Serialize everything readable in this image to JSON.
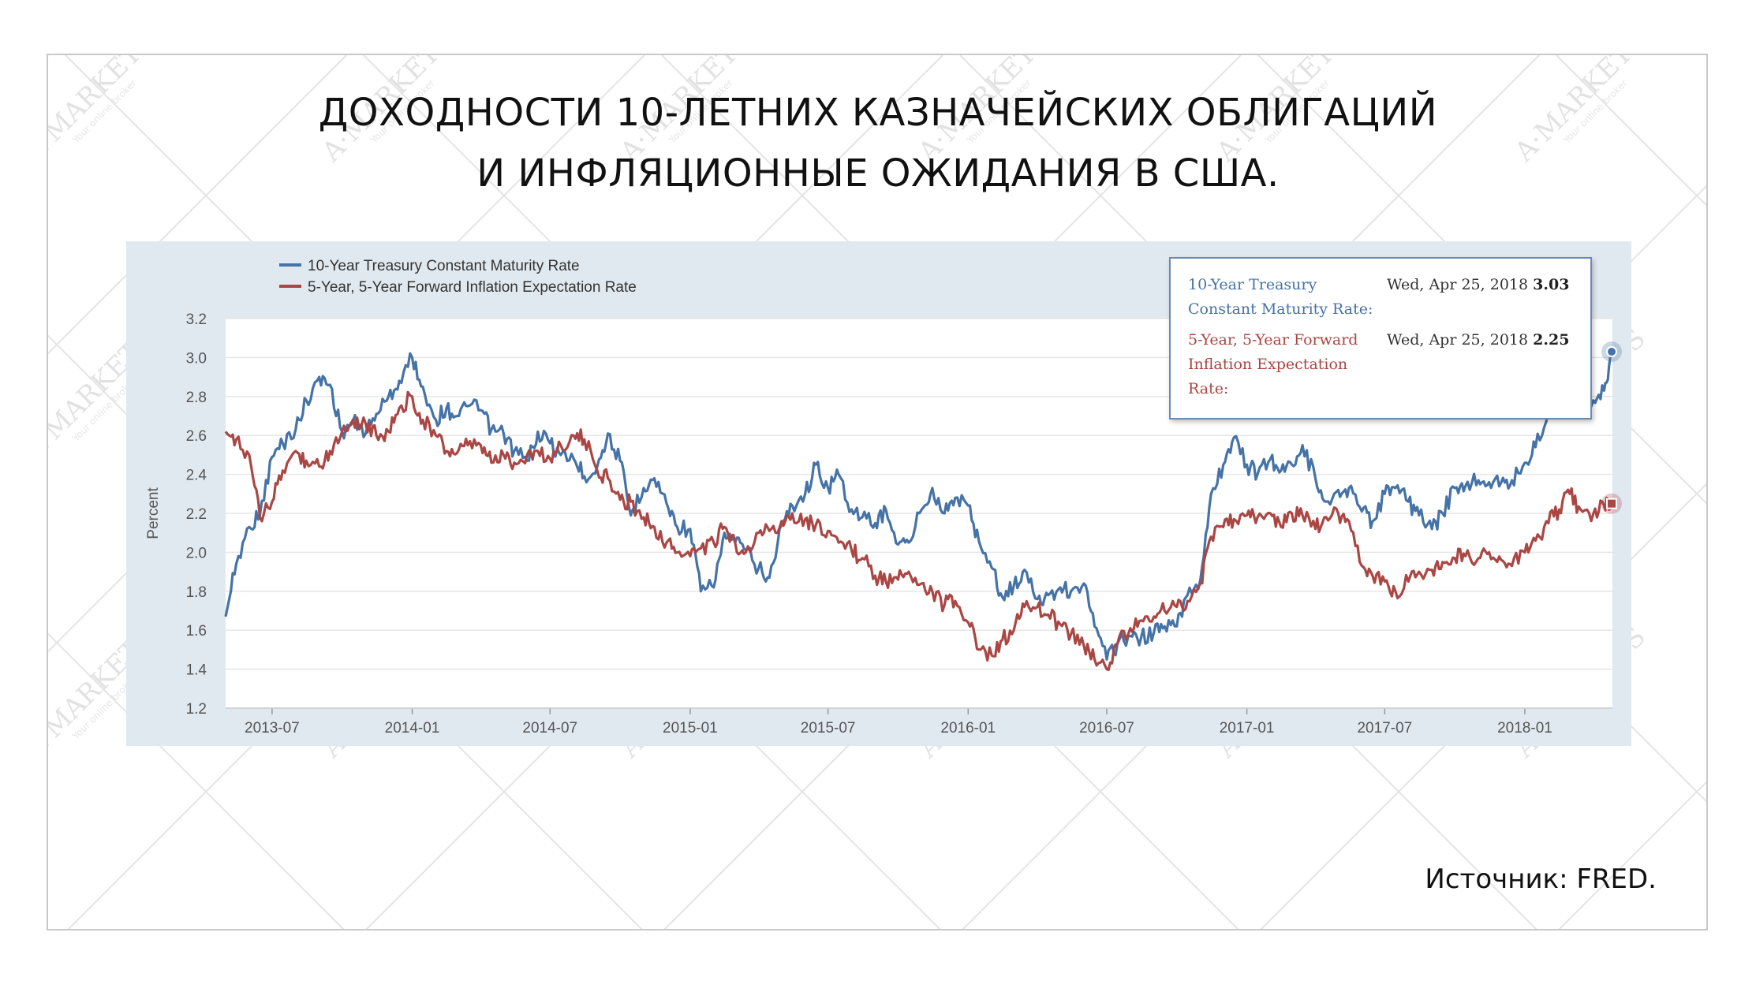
{
  "title_line1": "ДОХОДНОСТИ 10-ЛЕТНИХ КАЗНАЧЕЙСКИХ ОБЛИГАЦИЙ",
  "title_line2": "И ИНФЛЯЦИОННЫЕ ОЖИДАНИЯ В США.",
  "source": "Источник: FRED.",
  "watermark": {
    "brand": "A·MARKETS",
    "tagline": "Your online broker"
  },
  "colors": {
    "series1": "#4572a7",
    "series2": "#aa4643",
    "panel": "#e1e9f0",
    "tooltip_border": "#6a8bb5"
  },
  "tooltip": {
    "rows": [
      {
        "name": "10-Year Treasury Constant Maturity Rate:",
        "date": "Wed, Apr 25, 2018",
        "value": "3.03"
      },
      {
        "name": "5-Year, 5-Year Forward Inflation Expectation Rate:",
        "date": "Wed, Apr 25, 2018",
        "value": "2.25"
      }
    ]
  },
  "chart_data": {
    "type": "line",
    "title": "",
    "xlabel": "",
    "ylabel": "Percent",
    "ylim": [
      1.2,
      3.2
    ],
    "yticks": [
      "1.2",
      "1.4",
      "1.6",
      "1.8",
      "2.0",
      "2.2",
      "2.4",
      "2.6",
      "2.8",
      "3.0",
      "3.2"
    ],
    "xlim": [
      "2013-05-01",
      "2018-04-26"
    ],
    "xticks": [
      "2013-07",
      "2014-01",
      "2014-07",
      "2015-01",
      "2015-07",
      "2016-01",
      "2016-07",
      "2017-01",
      "2017-07",
      "2018-01"
    ],
    "grid": true,
    "legend": "top-left",
    "series": [
      {
        "name": "10-Year Treasury Constant Maturity Rate",
        "color": "#4572a7",
        "x": [
          "2013-05-01",
          "2013-05-15",
          "2013-06-01",
          "2013-06-15",
          "2013-07-01",
          "2013-07-15",
          "2013-08-01",
          "2013-08-15",
          "2013-09-01",
          "2013-09-15",
          "2013-10-01",
          "2013-10-15",
          "2013-11-01",
          "2013-11-15",
          "2013-12-01",
          "2013-12-15",
          "2014-01-01",
          "2014-01-15",
          "2014-02-01",
          "2014-02-15",
          "2014-03-01",
          "2014-03-15",
          "2014-04-01",
          "2014-04-15",
          "2014-05-01",
          "2014-05-15",
          "2014-06-01",
          "2014-06-15",
          "2014-07-01",
          "2014-07-15",
          "2014-08-01",
          "2014-08-15",
          "2014-09-01",
          "2014-09-15",
          "2014-10-01",
          "2014-10-15",
          "2014-11-01",
          "2014-11-15",
          "2014-12-01",
          "2014-12-15",
          "2015-01-01",
          "2015-01-15",
          "2015-02-01",
          "2015-02-15",
          "2015-03-01",
          "2015-03-15",
          "2015-04-01",
          "2015-04-15",
          "2015-05-01",
          "2015-05-15",
          "2015-06-01",
          "2015-06-15",
          "2015-07-01",
          "2015-07-15",
          "2015-08-01",
          "2015-08-15",
          "2015-09-01",
          "2015-09-15",
          "2015-10-01",
          "2015-10-15",
          "2015-11-01",
          "2015-11-15",
          "2015-12-01",
          "2015-12-15",
          "2016-01-01",
          "2016-01-15",
          "2016-02-01",
          "2016-02-15",
          "2016-03-01",
          "2016-03-15",
          "2016-04-01",
          "2016-04-15",
          "2016-05-01",
          "2016-05-15",
          "2016-06-01",
          "2016-06-15",
          "2016-07-01",
          "2016-07-15",
          "2016-08-01",
          "2016-08-15",
          "2016-09-01",
          "2016-09-15",
          "2016-10-01",
          "2016-10-15",
          "2016-11-01",
          "2016-11-15",
          "2016-12-01",
          "2016-12-15",
          "2017-01-01",
          "2017-01-15",
          "2017-02-01",
          "2017-02-15",
          "2017-03-01",
          "2017-03-15",
          "2017-04-01",
          "2017-04-15",
          "2017-05-01",
          "2017-05-15",
          "2017-06-01",
          "2017-06-15",
          "2017-07-01",
          "2017-07-15",
          "2017-08-01",
          "2017-08-15",
          "2017-09-01",
          "2017-09-15",
          "2017-10-01",
          "2017-10-15",
          "2017-11-01",
          "2017-11-15",
          "2017-12-01",
          "2017-12-15",
          "2018-01-01",
          "2018-01-15",
          "2018-02-01",
          "2018-02-15",
          "2018-03-01",
          "2018-03-15",
          "2018-04-01",
          "2018-04-15",
          "2018-04-25"
        ],
        "values": [
          1.67,
          1.94,
          2.13,
          2.19,
          2.49,
          2.56,
          2.63,
          2.78,
          2.9,
          2.86,
          2.62,
          2.67,
          2.61,
          2.71,
          2.8,
          2.88,
          3.0,
          2.85,
          2.68,
          2.74,
          2.7,
          2.75,
          2.73,
          2.63,
          2.61,
          2.52,
          2.47,
          2.62,
          2.56,
          2.5,
          2.48,
          2.39,
          2.44,
          2.61,
          2.47,
          2.19,
          2.33,
          2.38,
          2.25,
          2.13,
          2.12,
          1.8,
          1.82,
          2.1,
          2.05,
          2.01,
          1.92,
          1.87,
          2.14,
          2.24,
          2.3,
          2.45,
          2.33,
          2.4,
          2.22,
          2.18,
          2.15,
          2.22,
          2.04,
          2.05,
          2.22,
          2.33,
          2.2,
          2.28,
          2.24,
          2.06,
          1.92,
          1.77,
          1.83,
          1.91,
          1.76,
          1.78,
          1.82,
          1.8,
          1.84,
          1.62,
          1.45,
          1.53,
          1.57,
          1.56,
          1.59,
          1.62,
          1.62,
          1.78,
          1.86,
          2.3,
          2.45,
          2.59,
          2.45,
          2.4,
          2.48,
          2.42,
          2.45,
          2.55,
          2.38,
          2.26,
          2.32,
          2.33,
          2.21,
          2.16,
          2.3,
          2.33,
          2.26,
          2.19,
          2.12,
          2.2,
          2.33,
          2.34,
          2.37,
          2.36,
          2.36,
          2.37,
          2.46,
          2.54,
          2.73,
          2.89,
          2.86,
          2.82,
          2.78,
          2.83,
          3.03
        ]
      },
      {
        "name": "5-Year, 5-Year Forward Inflation Expectation Rate",
        "color": "#aa4643",
        "x": [
          "2013-05-01",
          "2013-05-15",
          "2013-06-01",
          "2013-06-15",
          "2013-07-01",
          "2013-07-15",
          "2013-08-01",
          "2013-08-15",
          "2013-09-01",
          "2013-09-15",
          "2013-10-01",
          "2013-10-15",
          "2013-11-01",
          "2013-11-15",
          "2013-12-01",
          "2013-12-15",
          "2014-01-01",
          "2014-01-15",
          "2014-02-01",
          "2014-02-15",
          "2014-03-01",
          "2014-03-15",
          "2014-04-01",
          "2014-04-15",
          "2014-05-01",
          "2014-05-15",
          "2014-06-01",
          "2014-06-15",
          "2014-07-01",
          "2014-07-15",
          "2014-08-01",
          "2014-08-15",
          "2014-09-01",
          "2014-09-15",
          "2014-10-01",
          "2014-10-15",
          "2014-11-01",
          "2014-11-15",
          "2014-12-01",
          "2014-12-15",
          "2015-01-01",
          "2015-01-15",
          "2015-02-01",
          "2015-02-15",
          "2015-03-01",
          "2015-03-15",
          "2015-04-01",
          "2015-04-15",
          "2015-05-01",
          "2015-05-15",
          "2015-06-01",
          "2015-06-15",
          "2015-07-01",
          "2015-07-15",
          "2015-08-01",
          "2015-08-15",
          "2015-09-01",
          "2015-09-15",
          "2015-10-01",
          "2015-10-15",
          "2015-11-01",
          "2015-11-15",
          "2015-12-01",
          "2015-12-15",
          "2016-01-01",
          "2016-01-15",
          "2016-02-01",
          "2016-02-15",
          "2016-03-01",
          "2016-03-15",
          "2016-04-01",
          "2016-04-15",
          "2016-05-01",
          "2016-05-15",
          "2016-06-01",
          "2016-06-15",
          "2016-07-01",
          "2016-07-15",
          "2016-08-01",
          "2016-08-15",
          "2016-09-01",
          "2016-09-15",
          "2016-10-01",
          "2016-10-15",
          "2016-11-01",
          "2016-11-15",
          "2016-12-01",
          "2016-12-15",
          "2017-01-01",
          "2017-01-15",
          "2017-02-01",
          "2017-02-15",
          "2017-03-01",
          "2017-03-15",
          "2017-04-01",
          "2017-04-15",
          "2017-05-01",
          "2017-05-15",
          "2017-06-01",
          "2017-06-15",
          "2017-07-01",
          "2017-07-15",
          "2017-08-01",
          "2017-08-15",
          "2017-09-01",
          "2017-09-15",
          "2017-10-01",
          "2017-10-15",
          "2017-11-01",
          "2017-11-15",
          "2017-12-01",
          "2017-12-15",
          "2018-01-01",
          "2018-01-15",
          "2018-02-01",
          "2018-02-15",
          "2018-03-01",
          "2018-03-15",
          "2018-04-01",
          "2018-04-15",
          "2018-04-25"
        ],
        "values": [
          2.62,
          2.58,
          2.5,
          2.18,
          2.26,
          2.42,
          2.52,
          2.47,
          2.44,
          2.52,
          2.62,
          2.68,
          2.66,
          2.6,
          2.62,
          2.74,
          2.8,
          2.68,
          2.6,
          2.52,
          2.51,
          2.55,
          2.55,
          2.46,
          2.5,
          2.46,
          2.5,
          2.52,
          2.48,
          2.55,
          2.6,
          2.58,
          2.42,
          2.38,
          2.27,
          2.26,
          2.18,
          2.13,
          2.05,
          2.0,
          1.98,
          2.02,
          2.05,
          2.13,
          2.05,
          2.0,
          2.1,
          2.11,
          2.16,
          2.2,
          2.17,
          2.14,
          2.11,
          2.05,
          2.01,
          1.97,
          1.88,
          1.85,
          1.86,
          1.9,
          1.84,
          1.8,
          1.73,
          1.75,
          1.64,
          1.5,
          1.47,
          1.55,
          1.6,
          1.72,
          1.72,
          1.68,
          1.63,
          1.58,
          1.52,
          1.45,
          1.4,
          1.53,
          1.61,
          1.65,
          1.67,
          1.7,
          1.72,
          1.75,
          1.84,
          2.08,
          2.13,
          2.17,
          2.19,
          2.18,
          2.2,
          2.13,
          2.2,
          2.19,
          2.12,
          2.18,
          2.2,
          2.16,
          1.93,
          1.88,
          1.85,
          1.8,
          1.85,
          1.9,
          1.91,
          1.95,
          1.97,
          1.98,
          1.97,
          2.0,
          1.96,
          1.93,
          2.0,
          2.06,
          2.15,
          2.22,
          2.3,
          2.22,
          2.2,
          2.24,
          2.25
        ]
      }
    ]
  }
}
